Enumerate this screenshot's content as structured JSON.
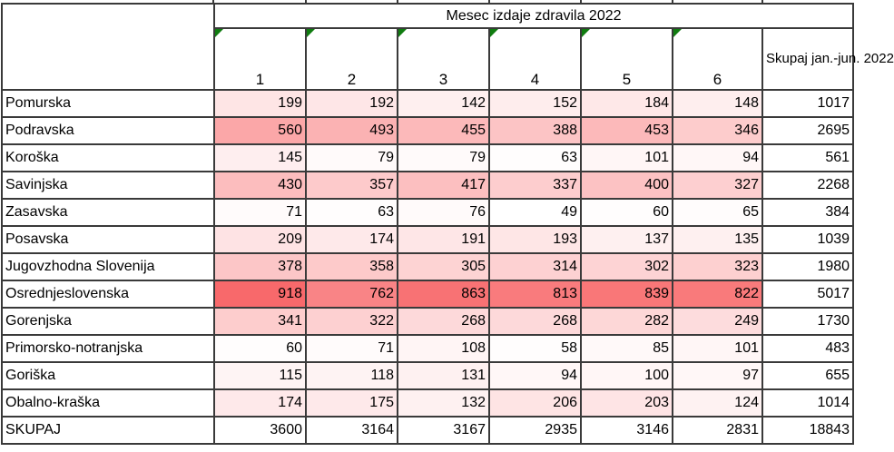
{
  "chart_data": {
    "type": "table",
    "styling": "heatmap",
    "title": "Mesec izdaje zdravila 2022",
    "corner_label": "",
    "columns": [
      "1",
      "2",
      "3",
      "4",
      "5",
      "6"
    ],
    "total_column_header": "Skupaj\njan.-jun.\n2022",
    "rows": [
      {
        "label": "Pomurska",
        "values": [
          199,
          192,
          142,
          152,
          184,
          148
        ],
        "total": 1017
      },
      {
        "label": "Podravska",
        "values": [
          560,
          493,
          455,
          388,
          453,
          346
        ],
        "total": 2695
      },
      {
        "label": "Koroška",
        "values": [
          145,
          79,
          79,
          63,
          101,
          94
        ],
        "total": 561
      },
      {
        "label": "Savinjska",
        "values": [
          430,
          357,
          417,
          337,
          400,
          327
        ],
        "total": 2268
      },
      {
        "label": "Zasavska",
        "values": [
          71,
          63,
          76,
          49,
          60,
          65
        ],
        "total": 384
      },
      {
        "label": "Posavska",
        "values": [
          209,
          174,
          191,
          193,
          137,
          135
        ],
        "total": 1039
      },
      {
        "label": "Jugovzhodna Slovenija",
        "values": [
          378,
          358,
          305,
          314,
          302,
          323
        ],
        "total": 1980
      },
      {
        "label": "Osrednjeslovenska",
        "values": [
          918,
          762,
          863,
          813,
          839,
          822
        ],
        "total": 5017
      },
      {
        "label": "Gorenjska",
        "values": [
          341,
          322,
          268,
          268,
          282,
          249
        ],
        "total": 1730
      },
      {
        "label": "Primorsko-notranjska",
        "values": [
          60,
          71,
          108,
          58,
          85,
          101
        ],
        "total": 483
      },
      {
        "label": "Goriška",
        "values": [
          115,
          118,
          131,
          94,
          100,
          97
        ],
        "total": 655
      },
      {
        "label": "Obalno-kraška",
        "values": [
          174,
          175,
          132,
          206,
          203,
          124
        ],
        "total": 1014
      }
    ],
    "totals_row": {
      "label": "SKUPAJ",
      "values": [
        3600,
        3164,
        3167,
        2935,
        3146,
        2831
      ],
      "total": 18843
    },
    "heatmap": {
      "min": 49,
      "max": 918,
      "low_color": "#FFFFFF",
      "high_color": "#F8696B"
    },
    "flag_color": "#107C10",
    "border_color": "#3A3A3A"
  }
}
